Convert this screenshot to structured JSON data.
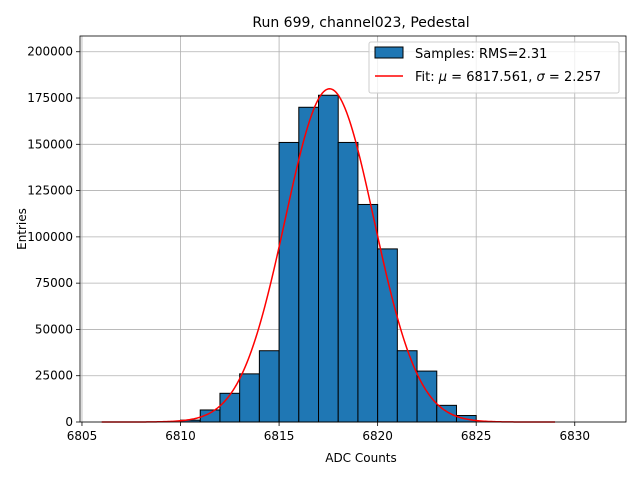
{
  "chart_data": {
    "type": "bar",
    "title": "Run 699, channel023, Pedestal",
    "xlabel": "ADC Counts",
    "ylabel": "Entries",
    "xlim": [
      6804.9,
      6832.6
    ],
    "ylim": [
      0,
      208500
    ],
    "xticks": [
      6805,
      6810,
      6815,
      6820,
      6825,
      6830
    ],
    "xtick_labels": [
      "6805",
      "6810",
      "6815",
      "6820",
      "6825",
      "6830"
    ],
    "yticks": [
      0,
      25000,
      50000,
      75000,
      100000,
      125000,
      150000,
      175000,
      200000
    ],
    "ytick_labels": [
      "0",
      "25000",
      "50000",
      "75000",
      "100000",
      "125000",
      "150000",
      "175000",
      "200000"
    ],
    "grid": true,
    "legend_position": "top-right",
    "histogram": {
      "name": "Samples: RMS=2.31",
      "color": "#1f77b4",
      "edgecolor": "#000000",
      "bin_edges": [
        6810,
        6811,
        6812,
        6813,
        6814,
        6815,
        6816,
        6817,
        6818,
        6819,
        6820,
        6821,
        6822,
        6823,
        6824,
        6825
      ],
      "values": [
        1000,
        6500,
        15500,
        26000,
        38500,
        151000,
        170000,
        176500,
        151000,
        117500,
        93500,
        38500,
        27500,
        9000,
        3500
      ]
    },
    "fit": {
      "name": "Fit: μ = 6817.561, σ = 2.257",
      "label_prefix": "Fit: ",
      "mu_symbol": "μ",
      "mu_value": "6817.561",
      "sigma_symbol": "σ",
      "sigma_value": "2.257",
      "color": "#ff0000",
      "mu": 6817.561,
      "sigma": 2.257,
      "amplitude": 180000,
      "x_range": [
        6806,
        6829
      ]
    }
  }
}
